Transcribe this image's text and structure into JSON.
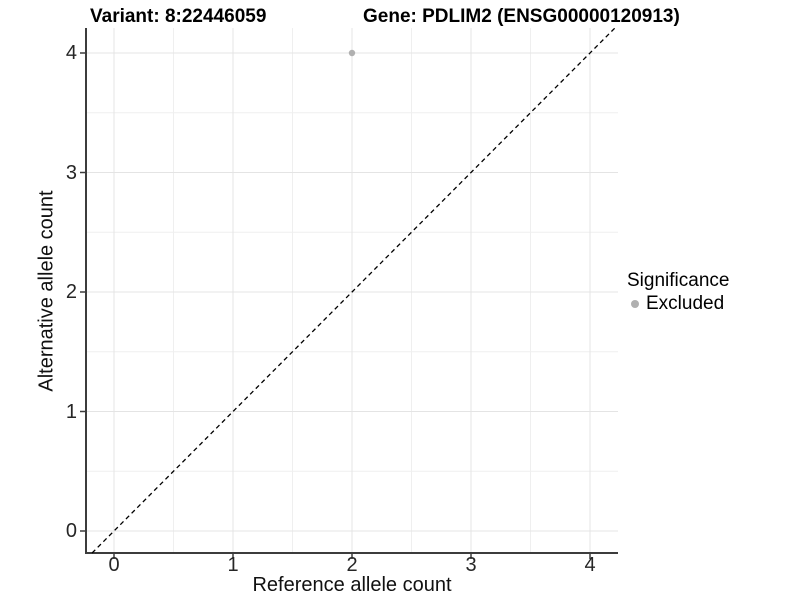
{
  "titles": {
    "variant": "Variant: 8:22446059",
    "gene": "Gene: PDLIM2 (ENSG00000120913)"
  },
  "legend": {
    "title": "Significance",
    "items": [
      {
        "label": "Excluded",
        "color": "#b0b0b0"
      }
    ]
  },
  "colors": {
    "axis_line": "#3c3c3c",
    "grid_major": "#e4e4e4",
    "grid_minor": "#efefef",
    "reference_line": "#000000",
    "point": "#b0b0b0"
  },
  "chart_data": {
    "type": "scatter",
    "title": "Variant: 8:22446059 / Gene: PDLIM2 (ENSG00000120913)",
    "xlabel": "Reference allele count",
    "ylabel": "Alternative allele count",
    "xlim": [
      -0.2,
      4.25
    ],
    "ylim": [
      -0.2,
      4.2
    ],
    "x_ticks": [
      0,
      1,
      2,
      3,
      4
    ],
    "y_ticks": [
      0,
      1,
      2,
      3,
      4
    ],
    "x_minor_ticks": [
      0.5,
      1.5,
      2.5,
      3.5
    ],
    "y_minor_ticks": [
      0.5,
      1.5,
      2.5,
      3.5
    ],
    "grid": true,
    "legend_position": "right",
    "series": [
      {
        "name": "Excluded",
        "color": "#b0b0b0",
        "points": [
          {
            "x": 2,
            "y": 4
          }
        ]
      }
    ],
    "reference_line": {
      "type": "identity y=x",
      "style": "dashed",
      "color": "#000000"
    }
  }
}
